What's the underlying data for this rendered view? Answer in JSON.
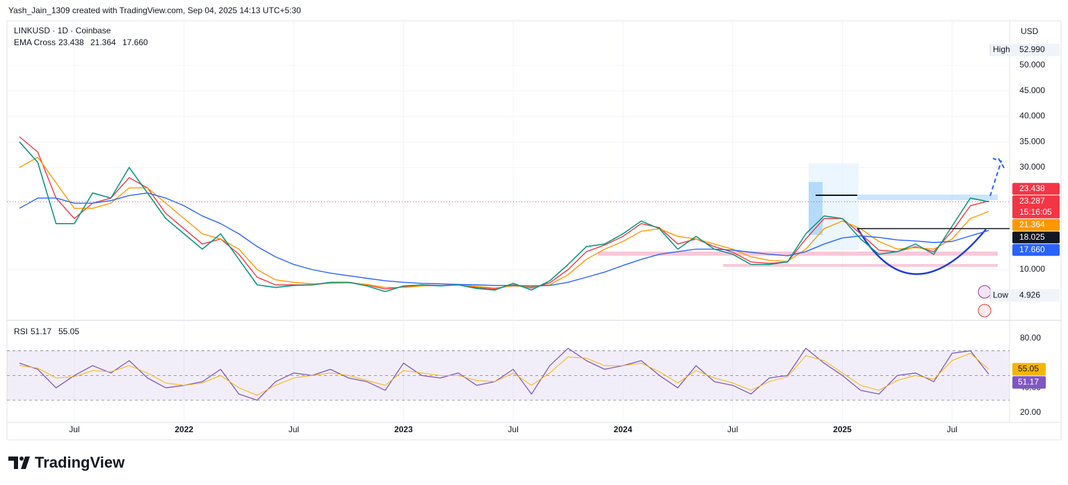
{
  "header": {
    "attribution": "Yash_Jain_1309 created with TradingView.com, Sep 04, 2025 14:13 UTC+5:30"
  },
  "footer": {
    "brand": "TradingView"
  },
  "chart_data": [
    {
      "type": "line",
      "title": "LINKUSD · 1D · Coinbase",
      "currency": "USD",
      "categories": [
        null,
        null,
        null,
        "Jul",
        null,
        null,
        null,
        null,
        null,
        "2022",
        null,
        null,
        null,
        null,
        null,
        "Jul",
        null,
        null,
        null,
        null,
        null,
        "2023",
        null,
        null,
        null,
        null,
        null,
        "Jul",
        null,
        null,
        null,
        null,
        null,
        "2024",
        null,
        null,
        null,
        null,
        null,
        "Jul",
        null,
        null,
        null,
        null,
        null,
        "2025",
        null,
        null,
        null,
        null,
        null,
        "Jul",
        null,
        null
      ],
      "values": [
        35,
        31,
        19,
        19,
        25,
        24,
        30,
        25,
        20,
        17,
        14,
        17,
        12,
        7,
        6.5,
        6.9,
        7,
        7.5,
        7.5,
        6.8,
        5.7,
        6.8,
        7,
        6.8,
        7,
        6.3,
        6,
        7.3,
        6,
        7.8,
        11,
        14.5,
        15,
        17,
        19.5,
        18,
        14,
        16.5,
        14,
        13,
        11,
        11,
        11.5,
        17,
        20.5,
        20,
        16,
        13,
        13.5,
        15,
        13,
        18.5,
        24,
        23.287
      ],
      "color": "#089981",
      "countdown": "15:16:05",
      "indicator": {
        "name": "EMA Cross",
        "series": [
          {
            "color": "#f23645",
            "values": [
              36,
              33,
              24,
              20,
              23,
              24,
              28,
              26,
              21,
              18,
              15,
              16,
              13,
              8.5,
              7,
              7,
              7,
              7.4,
              7.5,
              7,
              6.2,
              6.6,
              7,
              6.9,
              7,
              6.5,
              6.2,
              7,
              6.4,
              7.4,
              10,
              13.5,
              14.8,
              16.5,
              19,
              18.2,
              15,
              16,
              14.5,
              13.4,
              11.5,
              11.2,
              11.5,
              16,
              20,
              20,
              17,
              13.8,
              13.5,
              14.5,
              13.5,
              17.5,
              22.5,
              23.438
            ]
          },
          {
            "color": "#ff9800",
            "values": [
              30,
              32,
              27,
              22,
              22,
              23,
              26,
              26,
              23,
              20,
              17,
              16,
              14,
              10,
              8,
              7.5,
              7.2,
              7.3,
              7.4,
              7.1,
              6.5,
              6.5,
              6.8,
              6.9,
              7,
              6.7,
              6.4,
              6.8,
              6.6,
              7,
              9,
              12,
              14,
              15.5,
              17.5,
              18,
              16.5,
              16,
              15,
              14,
              12.5,
              11.8,
              11.6,
              14,
              18,
              19.5,
              18,
              15.5,
              14,
              14.3,
              14,
              16,
              20,
              21.364
            ]
          },
          {
            "color": "#2962ff",
            "values": [
              22,
              24,
              24,
              23,
              23,
              23.5,
              24.5,
              25,
              24,
              22.5,
              20.5,
              19,
              17,
              14.5,
              12.5,
              11,
              10,
              9.3,
              8.8,
              8.3,
              7.8,
              7.5,
              7.3,
              7.2,
              7.1,
              7,
              6.9,
              6.9,
              6.8,
              6.9,
              7.5,
              8.5,
              9.5,
              10.8,
              12,
              13,
              13.5,
              14,
              14,
              13.8,
              13.4,
              13,
              12.7,
              13.5,
              15,
              16.2,
              16.6,
              16.3,
              15.8,
              15.6,
              15.3,
              15.5,
              16.6,
              17.66
            ],
            "value_labels": [
              null,
              null,
              null,
              null,
              null,
              null,
              null,
              null,
              null,
              null,
              null,
              null,
              null,
              null,
              null,
              null,
              null,
              null,
              null,
              null,
              null,
              null,
              null,
              null,
              null,
              null,
              null,
              null,
              null,
              null,
              null,
              null,
              null,
              null,
              null,
              null,
              null,
              null,
              null,
              null,
              null,
              null,
              null,
              null,
              null,
              null,
              null,
              null,
              null,
              null,
              null,
              null,
              null,
              "17.660"
            ]
          }
        ]
      },
      "levels": [
        {
          "value": 18.025,
          "color": "#131722"
        }
      ],
      "high": {
        "name": "High",
        "value": 52.99,
        "value_label": "52.990"
      },
      "low": {
        "name": "Low",
        "value": 4.926
      },
      "ylim": [
        0.2,
        58.7
      ],
      "yticks": [
        {
          "value": 10,
          "label": "10.000"
        },
        {
          "value": 30,
          "label": "30.000"
        },
        {
          "value": 35,
          "label": "35.000"
        },
        {
          "value": 40,
          "label": "40.000"
        },
        {
          "value": 45,
          "label": "45.000"
        },
        {
          "value": 50,
          "label": "50.000"
        }
      ],
      "grid": true
    },
    {
      "type": "line",
      "title": "RSI",
      "series": [
        {
          "color": "#7e57c2",
          "values": [
            60,
            55,
            40,
            50,
            58,
            52,
            62,
            48,
            40,
            42,
            45,
            55,
            35,
            30,
            45,
            52,
            50,
            55,
            48,
            45,
            38,
            60,
            50,
            48,
            52,
            42,
            45,
            55,
            35,
            58,
            72,
            62,
            55,
            58,
            62,
            50,
            40,
            58,
            45,
            42,
            35,
            48,
            50,
            72,
            60,
            50,
            38,
            35,
            50,
            52,
            45,
            68,
            70,
            51.17
          ]
        },
        {
          "color": "#f7b500",
          "values": [
            58,
            56,
            48,
            49,
            54,
            53,
            58,
            52,
            44,
            42,
            44,
            50,
            40,
            34,
            42,
            48,
            50,
            52,
            50,
            46,
            42,
            54,
            52,
            50,
            50,
            46,
            45,
            52,
            42,
            52,
            65,
            64,
            58,
            58,
            60,
            53,
            44,
            54,
            48,
            44,
            38,
            45,
            49,
            66,
            62,
            52,
            42,
            38,
            46,
            50,
            47,
            62,
            68,
            55.05
          ]
        }
      ],
      "band": [
        30,
        70
      ],
      "midline": 50,
      "ylim": [
        12,
        93.5
      ],
      "yticks": [
        {
          "value": 20,
          "label": "20.00"
        },
        {
          "value": 40,
          "label": "40.00"
        },
        {
          "value": 80,
          "label": "80.00"
        }
      ],
      "grid": true
    }
  ]
}
